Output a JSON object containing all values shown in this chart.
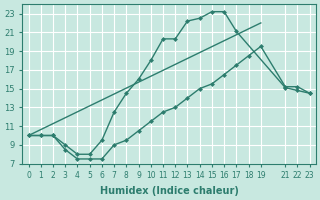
{
  "xlabel": "Humidex (Indice chaleur)",
  "bg_color": "#c8e8e0",
  "grid_color": "#ffffff",
  "line_color": "#2d7d6e",
  "xlim": [
    -0.5,
    23.5
  ],
  "ylim": [
    7,
    24
  ],
  "xtick_vals": [
    0,
    1,
    2,
    3,
    4,
    5,
    6,
    7,
    8,
    9,
    10,
    11,
    12,
    13,
    14,
    15,
    16,
    17,
    18,
    19,
    21,
    22,
    23
  ],
  "xtick_labels": [
    "0",
    "1",
    "2",
    "3",
    "4",
    "5",
    "6",
    "7",
    "8",
    "9",
    "10",
    "11",
    "12",
    "13",
    "14",
    "15",
    "16",
    "17",
    "18",
    "19",
    "21",
    "22",
    "23"
  ],
  "ytick_vals": [
    7,
    9,
    11,
    13,
    15,
    17,
    19,
    21,
    23
  ],
  "ytick_labels": [
    "7",
    "9",
    "11",
    "13",
    "15",
    "17",
    "19",
    "21",
    "23"
  ],
  "line1_x": [
    0,
    1,
    2,
    3,
    4,
    5,
    6,
    7,
    8,
    9,
    10,
    11,
    12,
    13,
    14,
    15,
    16,
    17,
    21,
    22,
    23
  ],
  "line1_y": [
    10,
    10,
    10,
    9,
    8,
    8,
    9.5,
    12.5,
    14.5,
    16,
    18,
    20.3,
    20.3,
    22.2,
    22.5,
    23.2,
    23.2,
    21.1,
    15.1,
    14.8,
    14.5
  ],
  "line2_x": [
    0,
    1,
    2,
    3,
    4,
    5,
    6,
    7,
    8,
    9,
    10,
    11,
    12,
    13,
    14,
    15,
    16,
    17,
    18,
    19,
    21,
    22,
    23
  ],
  "line2_y": [
    10,
    10,
    10,
    8.5,
    7.5,
    7.5,
    7.5,
    9,
    9.5,
    10.5,
    11.5,
    12.5,
    13,
    14,
    15,
    15.5,
    16.5,
    17.5,
    18.5,
    19.5,
    15.2,
    15.2,
    14.5
  ],
  "line3_x": [
    0,
    19
  ],
  "line3_y": [
    10,
    22
  ]
}
